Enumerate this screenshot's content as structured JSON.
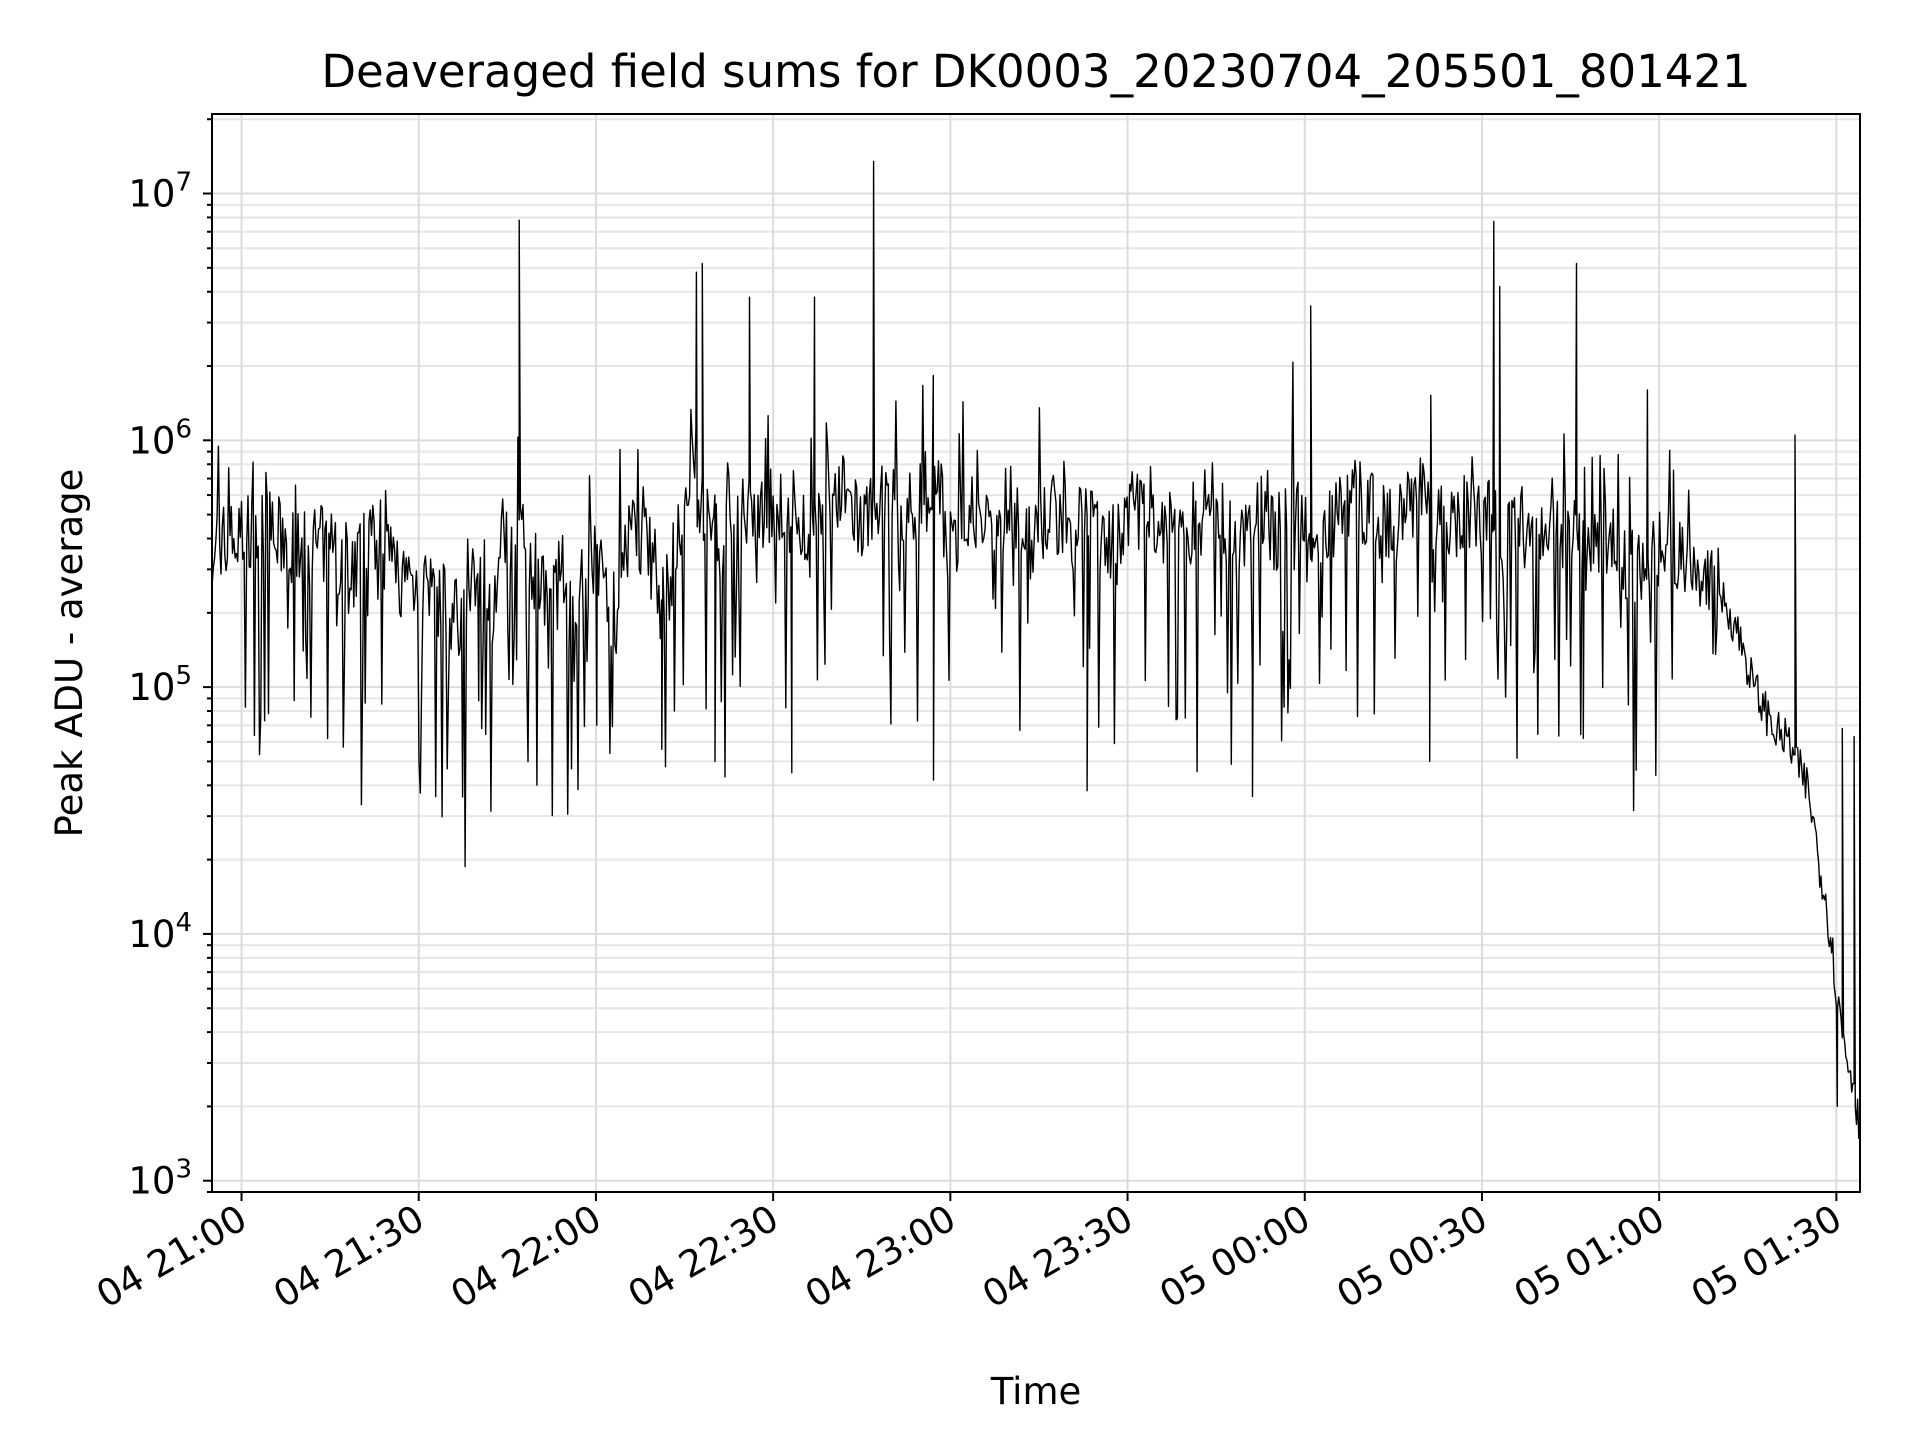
{
  "chart_data": {
    "type": "line",
    "title": "Deaveraged field sums for DK0003_20230704_205501_801421",
    "xlabel": "Time",
    "ylabel": "Peak ADU - average",
    "yscale": "log",
    "ylim": [
      900,
      21000000
    ],
    "xlim": [
      "2023-07-04 20:55",
      "2023-07-05 01:34"
    ],
    "grid": true,
    "x_ticks": [
      {
        "t": "2023-07-04 21:00",
        "label": "04 21:00"
      },
      {
        "t": "2023-07-04 21:30",
        "label": "04 21:30"
      },
      {
        "t": "2023-07-04 22:00",
        "label": "04 22:00"
      },
      {
        "t": "2023-07-04 22:30",
        "label": "04 22:30"
      },
      {
        "t": "2023-07-04 23:00",
        "label": "04 23:00"
      },
      {
        "t": "2023-07-04 23:30",
        "label": "04 23:30"
      },
      {
        "t": "2023-07-05 00:00",
        "label": "05 00:00"
      },
      {
        "t": "2023-07-05 00:30",
        "label": "05 00:30"
      },
      {
        "t": "2023-07-05 01:00",
        "label": "05 01:00"
      },
      {
        "t": "2023-07-05 01:30",
        "label": "05 01:30"
      }
    ],
    "y_ticks": [
      {
        "value": 1000,
        "base": "10",
        "exp": "3"
      },
      {
        "value": 10000,
        "base": "10",
        "exp": "4"
      },
      {
        "value": 100000,
        "base": "10",
        "exp": "5"
      },
      {
        "value": 1000000,
        "base": "10",
        "exp": "6"
      },
      {
        "value": 10000000,
        "base": "10",
        "exp": "7"
      }
    ],
    "series": [
      {
        "color": "#000000",
        "x": [
          "2023-07-04 20:55",
          "2023-07-04 21:00",
          "2023-07-04 21:05",
          "2023-07-04 21:10",
          "2023-07-04 21:15",
          "2023-07-04 21:19",
          "2023-07-04 21:22",
          "2023-07-04 21:27",
          "2023-07-04 21:32",
          "2023-07-04 21:37",
          "2023-07-04 21:40",
          "2023-07-04 21:42",
          "2023-07-04 21:44",
          "2023-07-04 21:47",
          "2023-07-04 21:50",
          "2023-07-04 21:55",
          "2023-07-04 22:00",
          "2023-07-04 22:03",
          "2023-07-04 22:06",
          "2023-07-04 22:10",
          "2023-07-04 22:12",
          "2023-07-04 22:15",
          "2023-07-04 22:18",
          "2023-07-04 22:21",
          "2023-07-04 22:24",
          "2023-07-04 22:27",
          "2023-07-04 22:30",
          "2023-07-04 22:33",
          "2023-07-04 22:36",
          "2023-07-04 22:39",
          "2023-07-04 22:42",
          "2023-07-04 22:45",
          "2023-07-04 22:48",
          "2023-07-04 22:51",
          "2023-07-04 22:54",
          "2023-07-04 22:58",
          "2023-07-04 23:00",
          "2023-07-04 23:03",
          "2023-07-04 23:07",
          "2023-07-04 23:10",
          "2023-07-04 23:14",
          "2023-07-04 23:17",
          "2023-07-04 23:21",
          "2023-07-04 23:24",
          "2023-07-04 23:28",
          "2023-07-04 23:31",
          "2023-07-04 23:35",
          "2023-07-04 23:38",
          "2023-07-04 23:42",
          "2023-07-04 23:45",
          "2023-07-04 23:48",
          "2023-07-04 23:52",
          "2023-07-04 23:55",
          "2023-07-04 23:58",
          "2023-07-05 00:01",
          "2023-07-05 00:04",
          "2023-07-05 00:07",
          "2023-07-05 00:10",
          "2023-07-05 00:14",
          "2023-07-05 00:17",
          "2023-07-05 00:20",
          "2023-07-05 00:24",
          "2023-07-05 00:27",
          "2023-07-05 00:31",
          "2023-07-05 00:34",
          "2023-07-05 00:37",
          "2023-07-05 00:41",
          "2023-07-05 00:45",
          "2023-07-05 00:48",
          "2023-07-05 00:52",
          "2023-07-05 00:55",
          "2023-07-05 00:59",
          "2023-07-05 01:02",
          "2023-07-05 01:05",
          "2023-07-05 01:08",
          "2023-07-05 01:10",
          "2023-07-05 01:12",
          "2023-07-05 01:14",
          "2023-07-05 01:16",
          "2023-07-05 01:18",
          "2023-07-05 01:20",
          "2023-07-05 01:22",
          "2023-07-05 01:23",
          "2023-07-05 01:25",
          "2023-07-05 01:26",
          "2023-07-05 01:27",
          "2023-07-05 01:28",
          "2023-07-05 01:29",
          "2023-07-05 01:30",
          "2023-07-05 01:31",
          "2023-07-05 01:32",
          "2023-07-05 01:33",
          "2023-07-05 01:34"
        ],
        "values": [
          380000,
          400000,
          420000,
          350000,
          380000,
          300000,
          450000,
          280000,
          250000,
          180000,
          300000,
          150000,
          400000,
          450000,
          280000,
          220000,
          350000,
          200000,
          500000,
          300000,
          250000,
          500000,
          550000,
          400000,
          600000,
          450000,
          500000,
          550000,
          400000,
          520000,
          600000,
          450000,
          600000,
          500000,
          550000,
          650000,
          350000,
          550000,
          400000,
          600000,
          380000,
          500000,
          420000,
          600000,
          350000,
          550000,
          400000,
          500000,
          450000,
          600000,
          380000,
          520000,
          400000,
          600000,
          350000,
          500000,
          600000,
          550000,
          450000,
          500000,
          600000,
          420000,
          550000,
          480000,
          400000,
          450000,
          380000,
          420000,
          350000,
          400000,
          300000,
          350000,
          380000,
          330000,
          300000,
          250000,
          200000,
          150000,
          100000,
          80000,
          65000,
          60000,
          50000,
          40000,
          30000,
          20000,
          15000,
          10000,
          6000,
          4000,
          3000,
          2500,
          1500
        ]
      },
      {
        "color": "#000000",
        "x": [
          "2023-07-04 21:47",
          "2023-07-04 22:17",
          "2023-07-04 22:18",
          "2023-07-04 22:26",
          "2023-07-04 22:37",
          "2023-07-04 22:47",
          "2023-07-05 00:01",
          "2023-07-05 00:32",
          "2023-07-05 00:33",
          "2023-07-05 00:46",
          "2023-07-05 00:58",
          "2023-07-05 01:23",
          "2023-07-05 01:31",
          "2023-07-05 01:33"
        ],
        "values": [
          7800000,
          4800000,
          5200000,
          3800000,
          3800000,
          13500000,
          3500000,
          7700000,
          4200000,
          5200000,
          1600000,
          1050000,
          68000,
          63000
        ]
      },
      {
        "color": "#000000",
        "x": [
          "2023-07-04 21:40",
          "2023-07-04 22:00",
          "2023-07-04 22:11",
          "2023-07-04 22:20",
          "2023-07-04 22:33",
          "2023-07-04 22:57",
          "2023-07-04 23:23",
          "2023-07-04 23:51",
          "2023-07-05 00:21",
          "2023-07-05 00:47",
          "2023-07-05 01:30"
        ],
        "values": [
          88000,
          70000,
          56000,
          50000,
          45000,
          42000,
          38000,
          36000,
          50000,
          62000,
          2000
        ]
      }
    ]
  }
}
